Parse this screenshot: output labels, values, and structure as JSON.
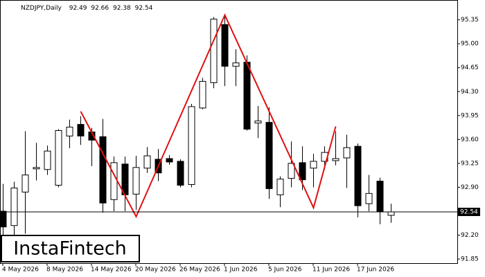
{
  "chart_data": {
    "type": "candlestick",
    "title": "NZDJPY,Daily",
    "categories": [
      "4 May 2026",
      null,
      null,
      null,
      "8 May 2026",
      null,
      null,
      null,
      "14 May 2026",
      null,
      null,
      null,
      "20 May 2026",
      null,
      null,
      null,
      "26 May 2026",
      null,
      null,
      null,
      "1 Jun 2026",
      null,
      null,
      null,
      "5 Jun 2026",
      null,
      null,
      null,
      "11 Jun 2026",
      null,
      null,
      null,
      "17 Jun 2026",
      null,
      null,
      null
    ],
    "open": [
      92.55,
      92.34,
      92.83,
      93.17,
      93.16,
      92.93,
      93.65,
      93.82,
      93.71,
      93.64,
      92.72,
      93.24,
      92.8,
      93.18,
      93.31,
      93.32,
      93.28,
      92.94,
      94.06,
      94.43,
      95.28,
      94.67,
      94.73,
      93.84,
      93.85,
      92.79,
      93.03,
      93.26,
      93.18,
      93.28,
      93.29,
      93.33,
      93.5,
      92.66,
      92.99,
      92.49
    ],
    "high": [
      92.95,
      92.98,
      93.72,
      93.55,
      93.51,
      93.75,
      93.89,
      93.94,
      93.77,
      93.9,
      93.35,
      93.35,
      93.36,
      93.49,
      93.46,
      93.37,
      93.31,
      94.12,
      94.5,
      95.39,
      95.42,
      94.92,
      94.83,
      94.09,
      94.07,
      93.06,
      93.57,
      93.5,
      93.39,
      93.5,
      93.72,
      93.67,
      93.54,
      93.08,
      93.04,
      92.66
    ],
    "low": [
      92.2,
      92.2,
      92.22,
      93.0,
      93.08,
      92.9,
      93.47,
      93.52,
      93.21,
      92.53,
      92.55,
      92.55,
      92.57,
      93.11,
      92.99,
      93.23,
      92.9,
      92.9,
      94.04,
      94.35,
      94.38,
      94.38,
      93.73,
      93.62,
      92.73,
      92.61,
      92.9,
      92.86,
      92.9,
      93.16,
      93.22,
      92.89,
      92.46,
      92.55,
      92.36,
      92.38
    ],
    "close": [
      92.32,
      92.89,
      93.08,
      93.19,
      93.43,
      93.73,
      93.78,
      93.65,
      93.59,
      92.67,
      93.26,
      92.79,
      93.19,
      93.36,
      93.11,
      93.27,
      92.93,
      94.08,
      94.45,
      95.36,
      94.67,
      94.72,
      93.75,
      93.87,
      92.88,
      93.02,
      93.25,
      93.01,
      93.28,
      93.41,
      93.32,
      93.48,
      92.63,
      92.81,
      92.54,
      92.54
    ],
    "up_color": "#ffffff",
    "down_color": "#000000",
    "pattern": {
      "color": "#e01010",
      "x": [
        7,
        12,
        20,
        28,
        30
      ],
      "values": [
        94.01,
        92.47,
        95.42,
        92.6,
        93.79
      ]
    },
    "ylim": [
      91.79,
      95.64
    ],
    "yticks": [
      91.85,
      {
        "value": 92.2,
        "label": "92.20"
      },
      {
        "value": 92.9,
        "label": "92.90"
      },
      93.25,
      {
        "value": 93.6,
        "label": "93.60"
      },
      93.95,
      {
        "value": 94.3,
        "label": "94.30"
      },
      94.65,
      {
        "value": 95,
        "label": "95.00"
      },
      95.35
    ],
    "grid": false
  },
  "watermark": "InstaFintech"
}
